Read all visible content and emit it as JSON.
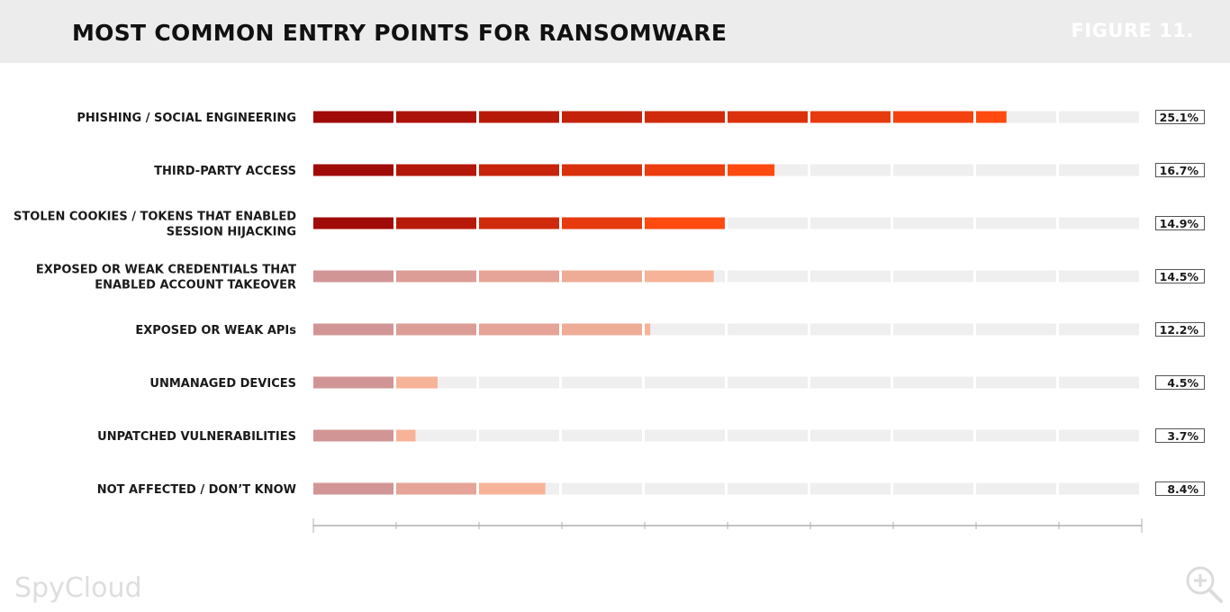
{
  "header": {
    "title": "MOST COMMON ENTRY POINTS FOR RANSOMWARE",
    "figure_label": "FIGURE 11."
  },
  "branding": {
    "logo_text": "SpyCloud"
  },
  "icons": {
    "zoom": "zoom-in-icon"
  },
  "colors": {
    "primary_start": "#a00a08",
    "primary_end": "#ff4a10",
    "secondary_start": "#d29595",
    "secondary_end": "#f7b398",
    "track": "#efefef",
    "value_box_border": "#555555"
  },
  "chart_data": {
    "type": "bar",
    "orientation": "horizontal",
    "title": "MOST COMMON ENTRY POINTS FOR RANSOMWARE",
    "categories": [
      [
        "PHISHING / SOCIAL ENGINEERING"
      ],
      [
        "THIRD-PARTY ACCESS"
      ],
      [
        "STOLEN COOKIES / TOKENS THAT ENABLED",
        "SESSION HIJACKING"
      ],
      [
        "EXPOSED OR WEAK CREDENTIALS THAT",
        "ENABLED ACCOUNT TAKEOVER"
      ],
      [
        "EXPOSED OR WEAK APIs"
      ],
      [
        "UNMANAGED DEVICES"
      ],
      [
        "UNPATCHED VULNERABILITIES"
      ],
      [
        "NOT AFFECTED / DON’T KNOW"
      ]
    ],
    "values": [
      25.1,
      16.7,
      14.9,
      14.5,
      12.2,
      4.5,
      3.7,
      8.4
    ],
    "value_labels": [
      "25.1%",
      "16.7%",
      "14.9%",
      "14.5%",
      "12.2%",
      "4.5%",
      "3.7%",
      "8.4%"
    ],
    "group": [
      "primary",
      "primary",
      "primary",
      "secondary",
      "secondary",
      "secondary",
      "secondary",
      "secondary"
    ],
    "xlim": [
      0,
      30
    ],
    "segments": 10,
    "xlabel": "",
    "ylabel": "",
    "grid": false,
    "legend": "none"
  }
}
